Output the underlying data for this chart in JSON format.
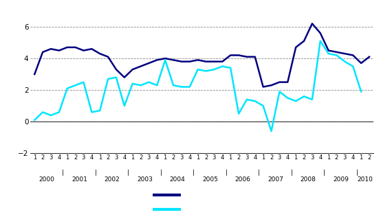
{
  "dark_blue_color": "#000080",
  "cyan_color": "#00E5FF",
  "background_color": "#FFFFFF",
  "plot_bg_color": "#FFFFFF",
  "grid_color": "#888888",
  "ylim": [
    -2,
    7
  ],
  "yticks": [
    -2,
    0,
    2,
    4,
    6
  ],
  "dark_blue": [
    3.0,
    4.4,
    4.6,
    4.5,
    4.7,
    4.7,
    4.5,
    4.6,
    4.3,
    4.1,
    3.3,
    2.8,
    3.3,
    3.5,
    3.7,
    3.9,
    4.0,
    3.9,
    3.8,
    3.8,
    3.9,
    3.8,
    3.8,
    3.8,
    4.2,
    4.2,
    4.1,
    4.1,
    2.2,
    2.3,
    2.5,
    2.5,
    4.7,
    5.1,
    6.2,
    5.6,
    4.5,
    4.4,
    4.3,
    4.2,
    3.7,
    4.1
  ],
  "cyan": [
    0.1,
    0.6,
    0.4,
    0.6,
    2.1,
    2.3,
    2.5,
    0.6,
    0.7,
    2.7,
    2.8,
    1.0,
    2.4,
    2.3,
    2.5,
    2.3,
    3.9,
    2.3,
    2.2,
    2.2,
    3.3,
    3.2,
    3.3,
    3.5,
    3.4,
    0.5,
    1.4,
    1.3,
    1.0,
    -0.6,
    1.9,
    1.5,
    1.3,
    1.6,
    1.4,
    5.1,
    4.3,
    4.2,
    3.8,
    3.5,
    1.9
  ],
  "years": [
    2000,
    2001,
    2002,
    2003,
    2004,
    2005,
    2006,
    2007,
    2008,
    2009,
    2010
  ],
  "quarters_per_year": [
    4,
    4,
    4,
    4,
    4,
    4,
    4,
    4,
    4,
    4,
    2
  ]
}
